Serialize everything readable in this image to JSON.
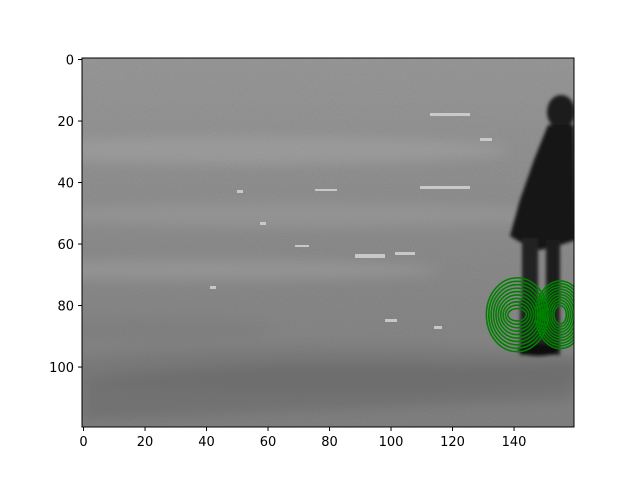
{
  "figure": {
    "x_axis": {
      "range": [
        0,
        159
      ],
      "ticks": [
        0,
        20,
        40,
        60,
        80,
        100,
        120,
        140
      ]
    },
    "y_axis": {
      "range": [
        0,
        119
      ],
      "inverted": true,
      "ticks": [
        0,
        20,
        40,
        60,
        80,
        100
      ]
    },
    "image": {
      "description_colormap": "grayscale",
      "width_units": 160,
      "height_units": 120
    },
    "overlay": {
      "color": "#008000",
      "ring_groups": [
        {
          "cx": 141,
          "cy": 83,
          "rx_min": 3,
          "rx_max": 10,
          "ry_min": 2,
          "ry_max": 12,
          "count": 10
        },
        {
          "cx": 155,
          "cy": 83,
          "rx_min": 2,
          "rx_max": 8,
          "ry_min": 3,
          "ry_max": 11,
          "count": 10
        }
      ]
    }
  }
}
